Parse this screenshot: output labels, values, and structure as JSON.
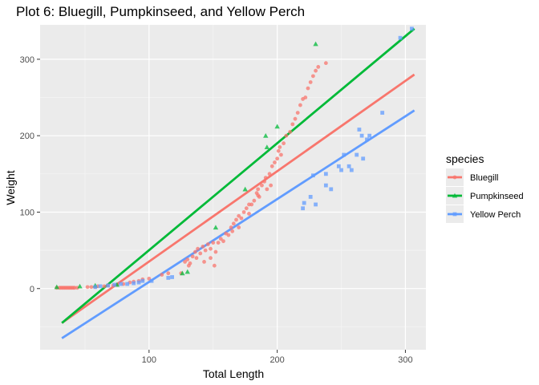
{
  "chart_data": {
    "type": "scatter",
    "title": "Plot 6: Bluegill, Pumpkinseed, and Yellow Perch",
    "xlabel": "Total Length",
    "ylabel": "Weight",
    "xlim": [
      15,
      316
    ],
    "ylim": [
      -80,
      345
    ],
    "xticks": [
      100,
      200,
      300
    ],
    "yticks": [
      0,
      100,
      200,
      300
    ],
    "grid": true,
    "legend": {
      "title": "species",
      "position": "right"
    },
    "series": [
      {
        "name": "Bluegill",
        "color": "#F8766D",
        "marker": "circle",
        "points": [
          [
            28,
            1
          ],
          [
            30,
            1
          ],
          [
            31,
            1
          ],
          [
            32,
            1
          ],
          [
            33,
            1
          ],
          [
            34,
            1
          ],
          [
            35,
            1
          ],
          [
            36,
            1
          ],
          [
            37,
            1
          ],
          [
            38,
            1
          ],
          [
            39,
            1
          ],
          [
            40,
            1
          ],
          [
            41,
            1
          ],
          [
            42,
            1
          ],
          [
            44,
            1
          ],
          [
            52,
            2
          ],
          [
            55,
            2
          ],
          [
            58,
            2
          ],
          [
            60,
            3
          ],
          [
            65,
            3
          ],
          [
            68,
            4
          ],
          [
            72,
            4
          ],
          [
            75,
            5
          ],
          [
            80,
            6
          ],
          [
            85,
            8
          ],
          [
            88,
            9
          ],
          [
            92,
            10
          ],
          [
            95,
            12
          ],
          [
            100,
            13
          ],
          [
            110,
            18
          ],
          [
            115,
            20
          ],
          [
            125,
            20
          ],
          [
            128,
            35
          ],
          [
            130,
            38
          ],
          [
            132,
            33
          ],
          [
            134,
            42
          ],
          [
            136,
            48
          ],
          [
            138,
            52
          ],
          [
            140,
            46
          ],
          [
            142,
            55
          ],
          [
            144,
            50
          ],
          [
            146,
            58
          ],
          [
            148,
            52
          ],
          [
            150,
            60
          ],
          [
            152,
            48
          ],
          [
            154,
            60
          ],
          [
            156,
            65
          ],
          [
            158,
            62
          ],
          [
            160,
            72
          ],
          [
            162,
            70
          ],
          [
            164,
            80
          ],
          [
            166,
            85
          ],
          [
            168,
            90
          ],
          [
            170,
            95
          ],
          [
            172,
            92
          ],
          [
            174,
            100
          ],
          [
            176,
            105
          ],
          [
            178,
            98
          ],
          [
            180,
            110
          ],
          [
            182,
            115
          ],
          [
            184,
            125
          ],
          [
            185,
            130
          ],
          [
            186,
            120
          ],
          [
            188,
            135
          ],
          [
            190,
            140
          ],
          [
            191,
            145
          ],
          [
            192,
            130
          ],
          [
            194,
            150
          ],
          [
            196,
            160
          ],
          [
            198,
            165
          ],
          [
            200,
            170
          ],
          [
            201,
            180
          ],
          [
            202,
            185
          ],
          [
            203,
            175
          ],
          [
            205,
            190
          ],
          [
            207,
            200
          ],
          [
            210,
            205
          ],
          [
            212,
            215
          ],
          [
            214,
            222
          ],
          [
            216,
            230
          ],
          [
            218,
            240
          ],
          [
            220,
            248
          ],
          [
            222,
            250
          ],
          [
            224,
            262
          ],
          [
            226,
            270
          ],
          [
            228,
            278
          ],
          [
            230,
            285
          ],
          [
            232,
            290
          ],
          [
            238,
            295
          ],
          [
            151,
            30
          ],
          [
            148,
            40
          ],
          [
            143,
            35
          ],
          [
            137,
            40
          ],
          [
            131,
            30
          ],
          [
            165,
            75
          ],
          [
            170,
            80
          ],
          [
            178,
            110
          ],
          [
            185,
            122
          ],
          [
            195,
            135
          ]
        ]
      },
      {
        "name": "Pumpkinseed",
        "color": "#00BA38",
        "marker": "triangle",
        "points": [
          [
            28,
            2
          ],
          [
            46,
            3
          ],
          [
            58,
            4
          ],
          [
            75,
            5
          ],
          [
            126,
            20
          ],
          [
            130,
            22
          ],
          [
            152,
            80
          ],
          [
            175,
            130
          ],
          [
            191,
            200
          ],
          [
            192,
            185
          ],
          [
            200,
            212
          ],
          [
            230,
            320
          ]
        ]
      },
      {
        "name": "Yellow Perch",
        "color": "#619CFF",
        "marker": "square",
        "points": [
          [
            58,
            2
          ],
          [
            62,
            3
          ],
          [
            68,
            4
          ],
          [
            73,
            5
          ],
          [
            78,
            6
          ],
          [
            83,
            6
          ],
          [
            88,
            7
          ],
          [
            92,
            8
          ],
          [
            95,
            10
          ],
          [
            102,
            10
          ],
          [
            115,
            14
          ],
          [
            118,
            15
          ],
          [
            220,
            105
          ],
          [
            221,
            112
          ],
          [
            226,
            120
          ],
          [
            228,
            148
          ],
          [
            230,
            110
          ],
          [
            238,
            150
          ],
          [
            238,
            135
          ],
          [
            242,
            130
          ],
          [
            248,
            160
          ],
          [
            250,
            155
          ],
          [
            252,
            175
          ],
          [
            256,
            160
          ],
          [
            258,
            155
          ],
          [
            262,
            175
          ],
          [
            264,
            208
          ],
          [
            266,
            200
          ],
          [
            267,
            170
          ],
          [
            270,
            195
          ],
          [
            272,
            200
          ],
          [
            282,
            230
          ],
          [
            296,
            328
          ],
          [
            305,
            340
          ]
        ]
      }
    ],
    "fit_lines": [
      {
        "name": "Bluegill",
        "color": "#F8766D",
        "x1": 32,
        "y1": -45,
        "x2": 307,
        "y2": 280
      },
      {
        "name": "Pumpkinseed",
        "color": "#00BA38",
        "x1": 32,
        "y1": -45,
        "x2": 307,
        "y2": 340
      },
      {
        "name": "Yellow Perch",
        "color": "#619CFF",
        "x1": 32,
        "y1": -65,
        "x2": 307,
        "y2": 233
      }
    ]
  }
}
